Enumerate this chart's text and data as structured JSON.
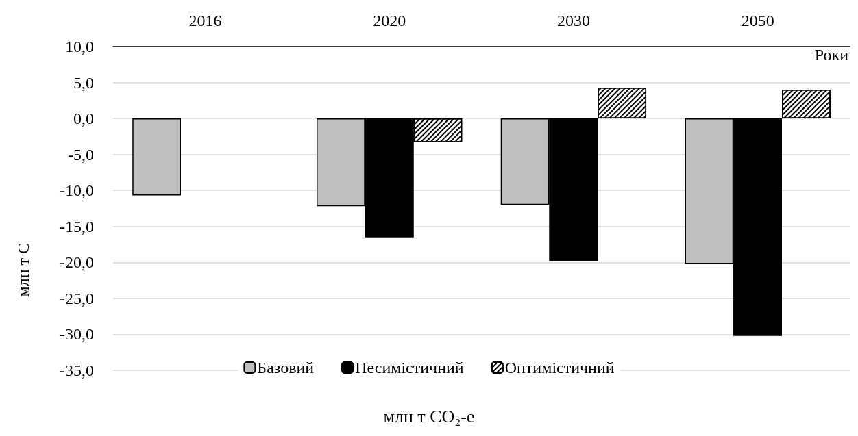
{
  "chart_data": {
    "type": "bar",
    "categories": [
      "2016",
      "2020",
      "2030",
      "2050"
    ],
    "xlabel": "Роки",
    "ylabel": "млн т С",
    "annotations": [
      "млн т CO₂-е"
    ],
    "series": [
      {
        "name": "Базовий",
        "color": "#bfbfbf",
        "values": [
          -10.7,
          -12.2,
          -12.0,
          -20.2
        ]
      },
      {
        "name": "Песимістичний",
        "color": "#000000",
        "values": [
          null,
          -16.5,
          -19.8,
          -30.2
        ]
      },
      {
        "name": "Оптимістичний",
        "color": "#ffffff",
        "values": [
          null,
          -3.3,
          4.3,
          4.0
        ]
      }
    ],
    "ylim": [
      -35,
      10
    ],
    "yticks": [
      {
        "value": -35,
        "label": "-35,0"
      },
      {
        "value": -30,
        "label": "-30,0"
      },
      {
        "value": -25,
        "label": "-25,0"
      },
      {
        "value": -20,
        "label": "-20,0"
      },
      {
        "value": -15,
        "label": "-15,0"
      },
      {
        "value": -10,
        "label": "-10,0"
      },
      {
        "value": -5,
        "label": "-5,0"
      },
      {
        "value": 0,
        "label": "0,0"
      },
      {
        "value": 5,
        "label": "5,0"
      },
      {
        "value": 10,
        "label": "10,0"
      }
    ],
    "grid": "y",
    "legend": "bottom"
  }
}
